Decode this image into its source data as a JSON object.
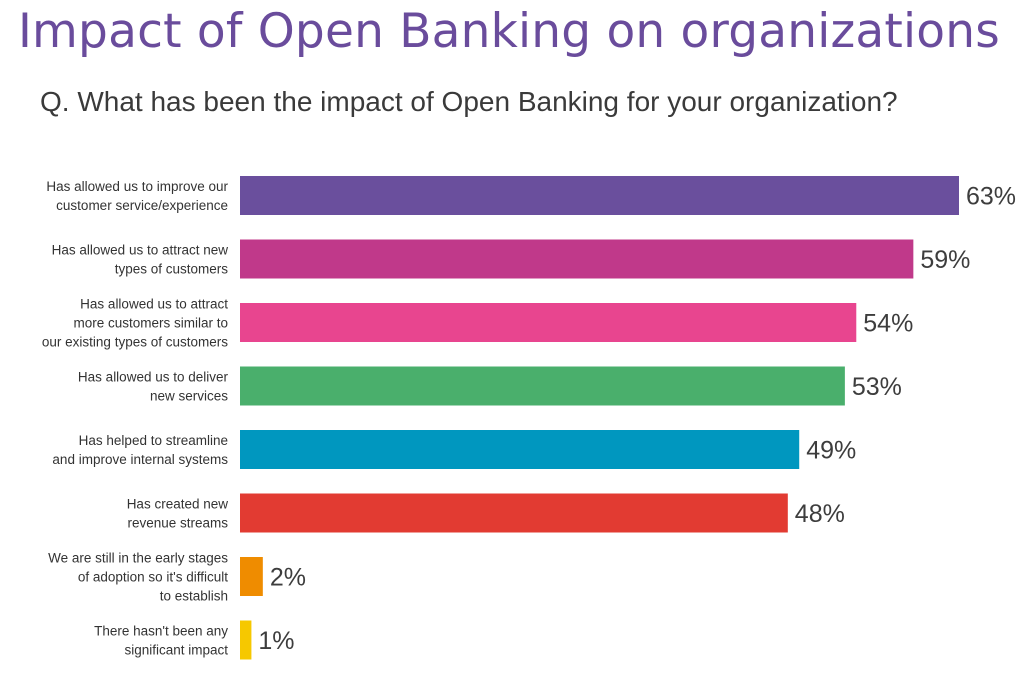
{
  "chart_data": {
    "type": "bar",
    "orientation": "horizontal",
    "title": "Impact of Open Banking on organizations",
    "subtitle": "Q. What has been the impact of Open Banking for your organization?",
    "unit": "%",
    "categories": [
      [
        "Has allowed us to improve our",
        "customer service/experience"
      ],
      [
        "Has allowed us to attract new",
        "types of customers"
      ],
      [
        "Has allowed us to attract",
        "more customers similar to",
        "our existing types of customers"
      ],
      [
        "Has allowed us to deliver",
        "new services"
      ],
      [
        "Has helped to streamline",
        "and improve internal systems"
      ],
      [
        "Has created new",
        "revenue streams"
      ],
      [
        "We are still in the early stages",
        "of adoption so it's difficult",
        "to establish"
      ],
      [
        "There hasn't been any",
        "significant impact"
      ]
    ],
    "values": [
      63,
      59,
      54,
      53,
      49,
      48,
      2,
      1
    ],
    "value_labels": [
      "63%",
      "59%",
      "54%",
      "53%",
      "49%",
      "48%",
      "2%",
      "1%"
    ],
    "colors": [
      "#6a4f9d",
      "#c0398a",
      "#e8458f",
      "#4aaf6c",
      "#0097bf",
      "#e23b32",
      "#ef8c00",
      "#f6c800"
    ],
    "xlim": [
      0,
      63
    ],
    "grid": false,
    "legend": "none"
  }
}
